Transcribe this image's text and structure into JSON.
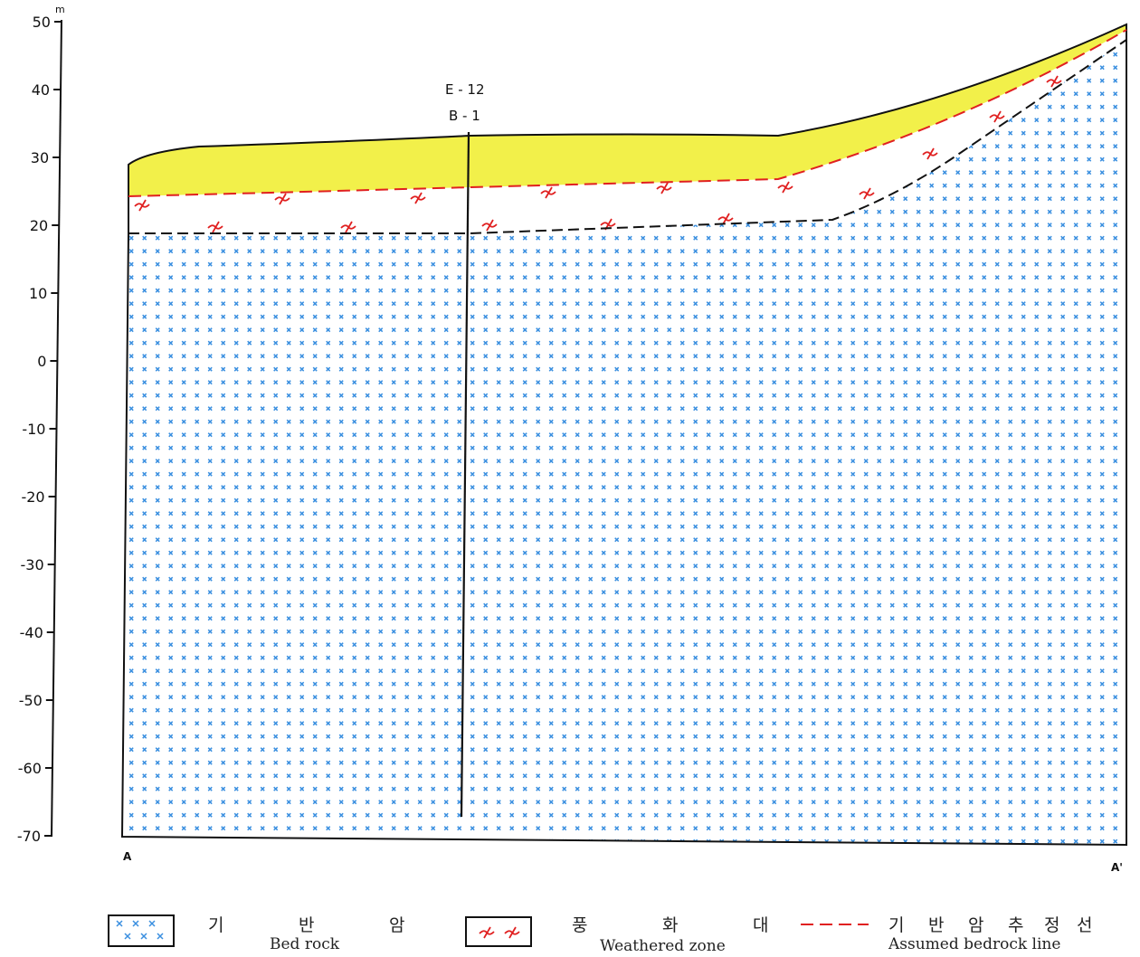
{
  "axis": {
    "unit": "m",
    "ticks": [
      "50",
      "40",
      "30",
      "20",
      "10",
      "0",
      "-10",
      "-20",
      "-30",
      "-40",
      "-50",
      "-60",
      "-70"
    ]
  },
  "borehole": {
    "line1": "E - 12",
    "line2": "B - 1"
  },
  "section_ends": {
    "left": "A",
    "right": "A'"
  },
  "legend": {
    "bedrock": {
      "ko": [
        "기",
        "반",
        "암"
      ],
      "en": "Bed rock"
    },
    "weathered": {
      "ko": [
        "풍",
        "화",
        "대"
      ],
      "en": "Weathered zone"
    },
    "assumed_line": {
      "ko": [
        "기",
        "반",
        "암",
        "추",
        "정",
        "선"
      ],
      "en": "Assumed bedrock line"
    }
  },
  "colors": {
    "soil_fill": "#f2f04a",
    "bedrock_marks": "#3a8fe0",
    "weathered_marks": "#e02020",
    "assumed_bedrock_line": "#e02020",
    "weathered_base_line": "#111111",
    "outline": "#111111"
  }
}
